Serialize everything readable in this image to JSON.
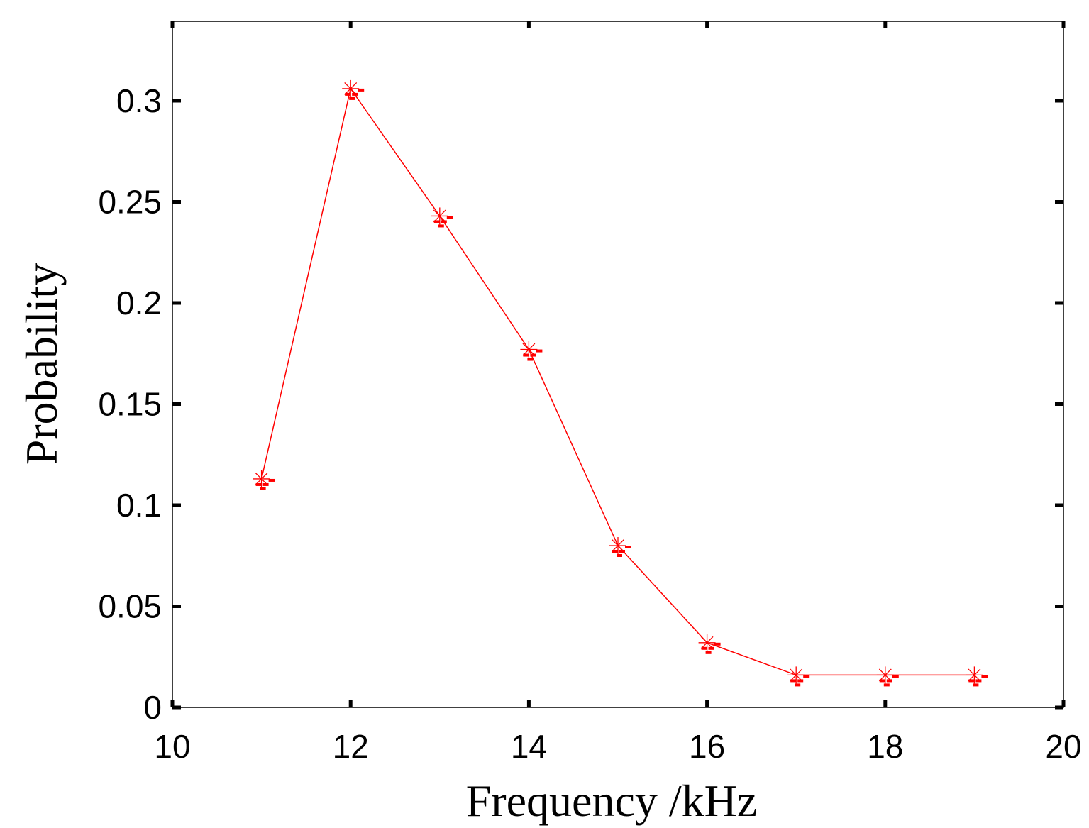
{
  "chart_data": {
    "type": "line",
    "title": "",
    "xlabel": "Frequency /kHz",
    "ylabel": "Probability",
    "xlim": [
      10,
      20
    ],
    "ylim": [
      0,
      0.33
    ],
    "xticks": [
      10,
      12,
      14,
      16,
      18,
      20
    ],
    "xtick_labels": [
      "10",
      "12",
      "14",
      "16",
      "18",
      "20"
    ],
    "yticks": [
      0,
      0.05,
      0.1,
      0.15,
      0.2,
      0.25,
      0.3
    ],
    "ytick_labels": [
      "0",
      "0.05",
      "0.1",
      "0.15",
      "0.2",
      "0.25",
      "0.3"
    ],
    "grid": false,
    "legend": "none",
    "series": [
      {
        "color": "#ff0000",
        "marker": "asterisk",
        "x": [
          11,
          12,
          13,
          14,
          15,
          16,
          17,
          18,
          19
        ],
        "y": [
          0.113,
          0.306,
          0.243,
          0.177,
          0.08,
          0.032,
          0.016,
          0.016,
          0.016
        ]
      }
    ]
  }
}
